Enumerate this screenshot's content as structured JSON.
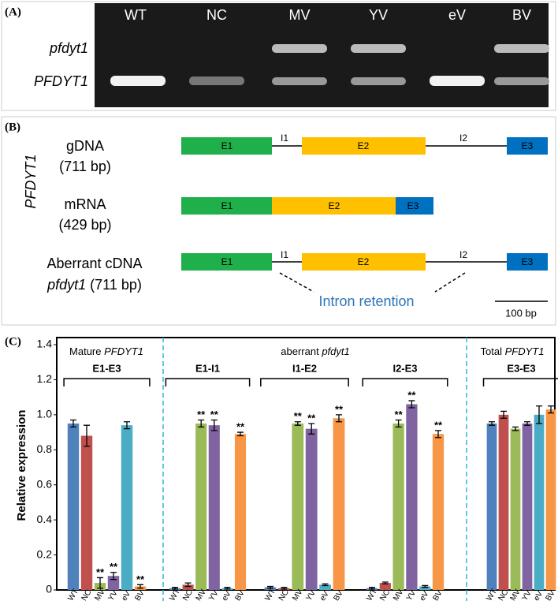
{
  "panel_a": {
    "label": "(A)",
    "lanes": [
      "WT",
      "NC",
      "MV",
      "YV",
      "eV",
      "BV"
    ],
    "bands": [
      "pfdyt1",
      "PFDYT1"
    ]
  },
  "panel_b": {
    "label": "(B)",
    "gene": "PFDYT1",
    "rows": [
      {
        "name": "gDNA",
        "size": "(711 bp)"
      },
      {
        "name": "mRNA",
        "size": "(429 bp)"
      },
      {
        "name": "Aberrant cDNA",
        "gene": "pfdyt1",
        "size": "(711 bp)"
      }
    ],
    "exons": [
      "E1",
      "E2",
      "E3"
    ],
    "introns": [
      "I1",
      "I2"
    ],
    "annotation": "Intron retention",
    "scale": "100 bp"
  },
  "panel_c": {
    "label": "(C)"
  },
  "chart_data": {
    "type": "bar",
    "ylabel": "Relative expression",
    "ylim": [
      0,
      1.4
    ],
    "yticks": [
      0,
      0.2,
      0.4,
      0.6,
      0.8,
      {
        "value": 1,
        "label": "1.0"
      },
      1.2,
      1.4
    ],
    "colors": [
      "#4f81bd",
      "#c0504d",
      "#9bbb59",
      "#8064a2",
      "#4bacc6",
      "#f79646"
    ],
    "sections": [
      {
        "title": "Mature",
        "gene": "PFDYT1",
        "groups": [
          {
            "name": "E1-E3",
            "categories": [
              "WT",
              "NC",
              "MV",
              "YV",
              "eV",
              "BV"
            ],
            "values": [
              0.95,
              0.88,
              0.04,
              0.08,
              0.94,
              0.02
            ],
            "errors": [
              0.02,
              0.06,
              0.03,
              0.02,
              0.02,
              0.01
            ],
            "annotations": [
              null,
              null,
              "**",
              "**",
              null,
              "**"
            ]
          }
        ]
      },
      {
        "title": "aberrant",
        "gene": "pfdyt1",
        "groups": [
          {
            "name": "E1-I1",
            "categories": [
              "WT",
              "NC",
              "MV",
              "YV",
              "eV",
              "BV"
            ],
            "values": [
              0.01,
              0.03,
              0.95,
              0.94,
              0.01,
              0.89
            ],
            "errors": [
              0.005,
              0.01,
              0.02,
              0.03,
              0.005,
              0.01
            ],
            "annotations": [
              null,
              null,
              "**",
              "**",
              null,
              "**"
            ]
          },
          {
            "name": "I1-E2",
            "categories": [
              "WT",
              "NC",
              "MV",
              "YV",
              "eV",
              "BV"
            ],
            "values": [
              0.015,
              0.01,
              0.95,
              0.92,
              0.03,
              0.98
            ],
            "errors": [
              0.005,
              0.005,
              0.01,
              0.03,
              0.005,
              0.02
            ],
            "annotations": [
              null,
              null,
              "**",
              "**",
              null,
              "**"
            ]
          },
          {
            "name": "I2-E3",
            "categories": [
              "WT",
              "NC",
              "MV",
              "YV",
              "eV",
              "BV"
            ],
            "values": [
              0.01,
              0.04,
              0.95,
              1.06,
              0.02,
              0.89
            ],
            "errors": [
              0.005,
              0.005,
              0.02,
              0.02,
              0.005,
              0.02
            ],
            "annotations": [
              null,
              null,
              "**",
              "**",
              null,
              "**"
            ]
          }
        ]
      },
      {
        "title": "Total",
        "gene": "PFDYT1",
        "groups": [
          {
            "name": "E3-E3",
            "categories": [
              "WT",
              "NC",
              "MV",
              "YV",
              "eV",
              "BV"
            ],
            "values": [
              0.95,
              1.0,
              0.92,
              0.95,
              1.0,
              1.03
            ],
            "errors": [
              0.01,
              0.02,
              0.01,
              0.01,
              0.05,
              0.02
            ],
            "annotations": [
              null,
              null,
              null,
              null,
              null,
              null
            ]
          }
        ]
      }
    ]
  }
}
